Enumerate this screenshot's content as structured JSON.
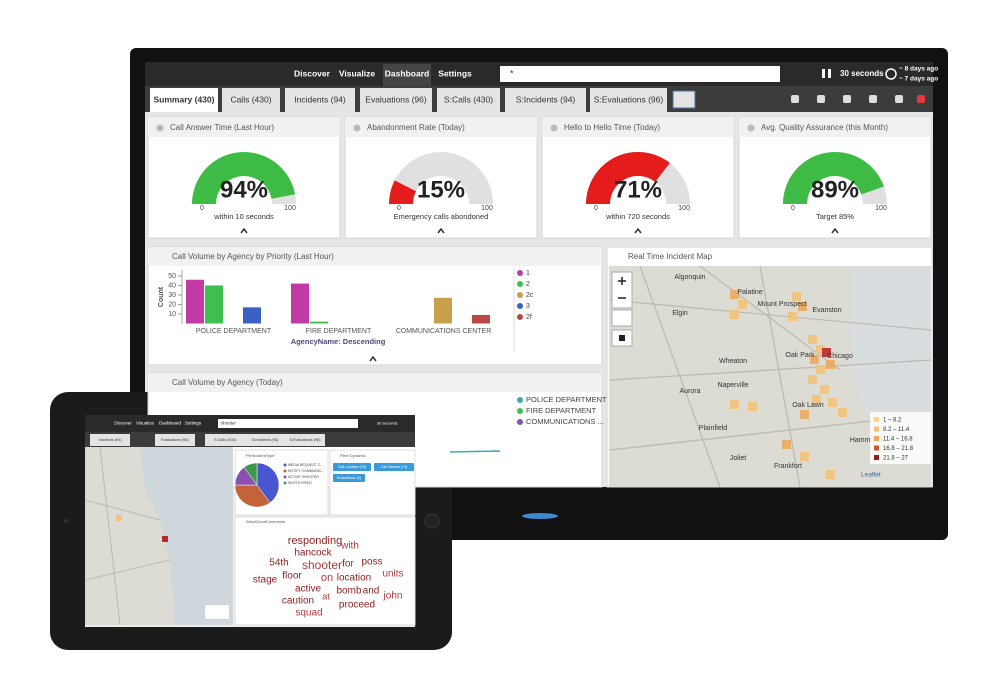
{
  "monitor": {
    "nav": [
      "Discover",
      "Visualize",
      "Dashboard",
      "Settings"
    ],
    "search": "*",
    "refresh": "30 seconds",
    "time_range": [
      "~ 8 days ago",
      "~ 7 days ago"
    ],
    "tabs": [
      "Summary (430)",
      "Calls (430)",
      "Incidents (94)",
      "Evaluations (96)",
      "S:Calls (430)",
      "S:Incidents (94)",
      "S:Evaluations (96)"
    ],
    "gauges": [
      {
        "title": "Call Answer Time (Last Hour)",
        "value": 94,
        "label": "94%",
        "subtitle": "within 10 seconds",
        "min": 0,
        "max": 100,
        "color": "#3dbb45"
      },
      {
        "title": "Abandonment Rate (Today)",
        "value": 15,
        "label": "15%",
        "subtitle": "Emergency calls abondoned",
        "min": 0,
        "max": 100,
        "color": "#e41c1c"
      },
      {
        "title": "Hello to Hello Time (Today)",
        "value": 71,
        "label": "71%",
        "subtitle": "within 720 seconds",
        "min": 0,
        "max": 100,
        "color": "#e41c1c"
      },
      {
        "title": "Avg. Quality Assurance (this Month)",
        "value": 89,
        "label": "89%",
        "subtitle": "Target 85%",
        "min": 0,
        "max": 100,
        "color": "#3dbb45"
      }
    ],
    "bar_chart": {
      "type": "bar",
      "title": "Call Volume by Agency by Priority (Last Hour)",
      "y_label": "Count",
      "x_label": "AgencyName: Descending",
      "categories": [
        "POLICE DEPARTMENT",
        "FIRE DEPARTMENT",
        "COMMUNICATIONS CENTER"
      ],
      "series": [
        {
          "name": "1",
          "color": "#c23aa6",
          "values": [
            46,
            42,
            null
          ]
        },
        {
          "name": "2",
          "color": "#3fbf4f",
          "values": [
            40,
            2,
            null
          ]
        },
        {
          "name": "2c",
          "color": "#c9a04a",
          "values": [
            null,
            null,
            27
          ]
        },
        {
          "name": "3",
          "color": "#3b62c2",
          "values": [
            17,
            null,
            null
          ]
        },
        {
          "name": "2f",
          "color": "#b84848",
          "values": [
            null,
            null,
            9
          ]
        }
      ],
      "ylim": [
        0,
        55
      ],
      "yticks": [
        10,
        20,
        30,
        40,
        50
      ]
    },
    "map": {
      "title": "Real Time Incident Map",
      "places": [
        "Algonquin",
        "Palatine",
        "Mount Prospect",
        "Evanston",
        "Elgin",
        "Oak Park",
        "Chicago",
        "Wheaton",
        "Aurora",
        "Naperville",
        "Oak Lawn",
        "Plainfield",
        "Joliet",
        "Frankfort",
        "Hammond"
      ],
      "legend": [
        "1 – 8.2",
        "8.2 – 11.4",
        "11.4 – 16.8",
        "16.8 – 21.8",
        "21.8 – 27"
      ],
      "attribution": "Leaflet"
    },
    "agency_chart": {
      "title": "Call Volume by Agency (Today)",
      "legend": [
        "POLICE DEPARTMENT",
        "FIRE DEPARTMENT",
        "COMMUNICATIONS ..."
      ]
    }
  },
  "tablet": {
    "nav": [
      "Discover",
      "Visualize",
      "Dashboard",
      "Settings"
    ],
    "search": "shooter",
    "refresh": "30 seconds",
    "tabs": [
      "Incidents (94)",
      "Evaluations (96)",
      "S:Calls (430)",
      "S:Incidents (94)",
      "S:Evaluations (96)"
    ],
    "pie": {
      "type": "pie",
      "title": "PieIncidentType",
      "slices": [
        {
          "name": "MEDIA REQUEST C...",
          "color": "#4a56d0",
          "value": 40
        },
        {
          "name": "NOTIFY COMMUNIC...",
          "color": "#c4623a",
          "value": 35
        },
        {
          "name": "ACTIVE SHOOTER",
          "color": "#8a4fb0",
          "value": 15
        },
        {
          "name": "SHOTS FIRED",
          "color": "#3a9a4a",
          "value": 10
        }
      ]
    },
    "filter": {
      "title": "Filter Dynamic",
      "buttons": [
        "Call Location (76)",
        "Call Volume (74)",
        "Evaluations (0)"
      ]
    },
    "wordcloud": {
      "title": "WordCloudComments",
      "words": [
        "responding",
        "with",
        "hancock",
        "54th",
        "shooter",
        "for",
        "poss",
        "units",
        "stage",
        "floor",
        "on",
        "location",
        "active",
        "at",
        "bomb",
        "and",
        "john",
        "caution",
        "proceed",
        "squad"
      ]
    }
  }
}
